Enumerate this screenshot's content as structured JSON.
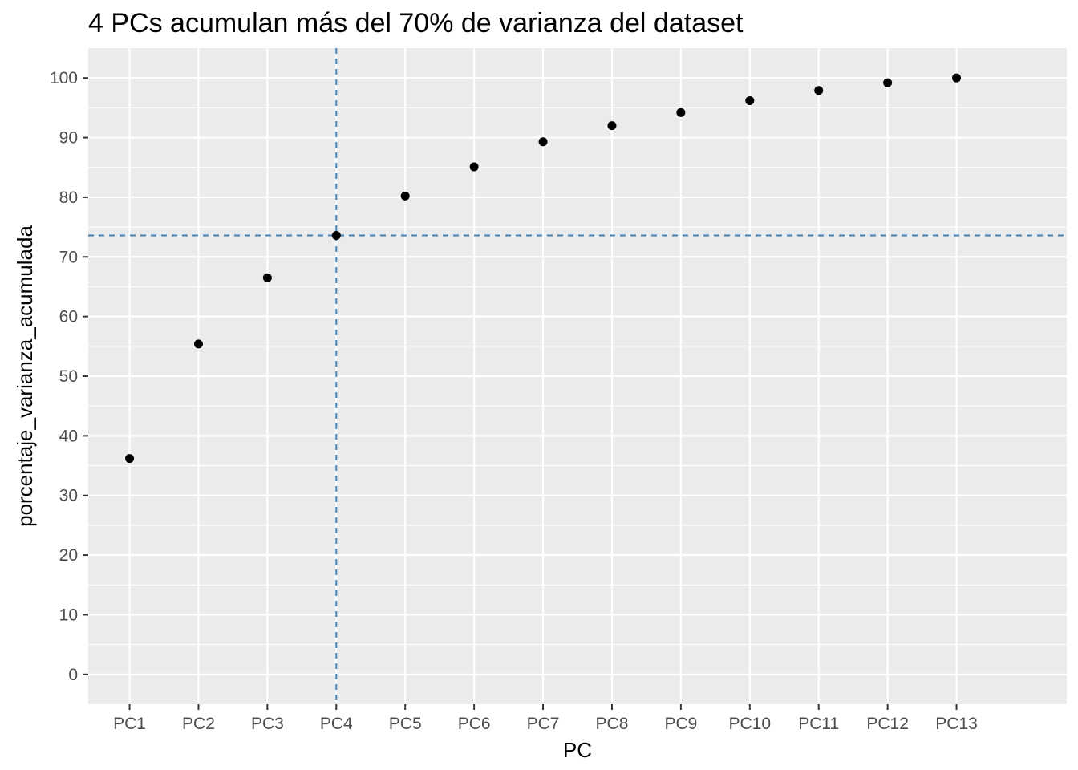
{
  "chart_data": {
    "type": "scatter",
    "title": "4 PCs acumulan más del 70% de varianza del dataset",
    "xlabel": "PC",
    "ylabel": "porcentaje_varianza_acumulada",
    "categories": [
      "PC1",
      "PC2",
      "PC3",
      "PC4",
      "PC5",
      "PC6",
      "PC7",
      "PC8",
      "PC9",
      "PC10",
      "PC11",
      "PC12",
      "PC13"
    ],
    "values": [
      36.2,
      55.4,
      66.5,
      73.6,
      80.2,
      85.1,
      89.3,
      92.0,
      94.2,
      96.2,
      97.9,
      99.2,
      100.0
    ],
    "ylim": [
      -5,
      105
    ],
    "yticks": [
      0,
      10,
      20,
      30,
      40,
      50,
      60,
      70,
      80,
      90,
      100
    ],
    "reference_lines": {
      "vertical_at": "PC4",
      "horizontal_at": 73.6
    },
    "grid": true,
    "legend": "none",
    "colors": {
      "panel": "#ebebeb",
      "grid": "#ffffff",
      "point": "#000000",
      "reference": "#4682b4"
    }
  }
}
